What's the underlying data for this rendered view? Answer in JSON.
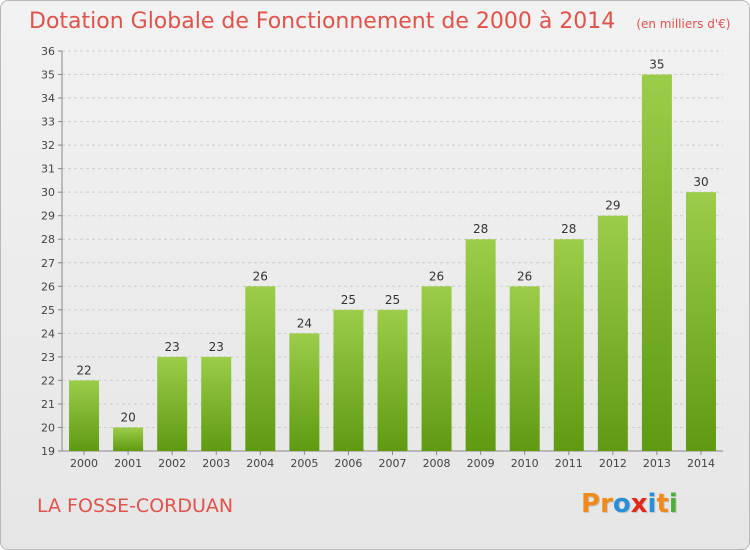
{
  "header": {
    "title": "Dotation Globale de Fonctionnement de 2000 à 2014",
    "subtitle": "(en milliers d'€)"
  },
  "footer": {
    "commune": "LA FOSSE-CORDUAN",
    "logo": [
      "P",
      "r",
      "o",
      "x",
      "i",
      "t",
      "i"
    ]
  },
  "colors": {
    "title": "#e0524a",
    "bar_top": "#9ccd4a",
    "bar_bottom": "#5f9a12",
    "grid": "#cccccc",
    "logo": [
      "#f08a1c",
      "#f08a1c",
      "#2a8fd6",
      "#e0281b",
      "#2a8fd6",
      "#f08a1c",
      "#4caf3a"
    ]
  },
  "chart_data": {
    "type": "bar",
    "title": "Dotation Globale de Fonctionnement de 2000 à 2014",
    "subtitle": "(en milliers d'€)",
    "xlabel": "",
    "ylabel": "",
    "categories": [
      "2000",
      "2001",
      "2002",
      "2003",
      "2004",
      "2005",
      "2006",
      "2007",
      "2008",
      "2009",
      "2010",
      "2011",
      "2012",
      "2013",
      "2014"
    ],
    "values": [
      22,
      20,
      23,
      23,
      26,
      24,
      25,
      25,
      26,
      28,
      26,
      28,
      29,
      35,
      30
    ],
    "ylim": [
      19,
      36
    ],
    "yticks": [
      19,
      20,
      21,
      22,
      23,
      24,
      25,
      26,
      27,
      28,
      29,
      30,
      31,
      32,
      33,
      34,
      35,
      36
    ],
    "grid": "horizontal dashed"
  }
}
